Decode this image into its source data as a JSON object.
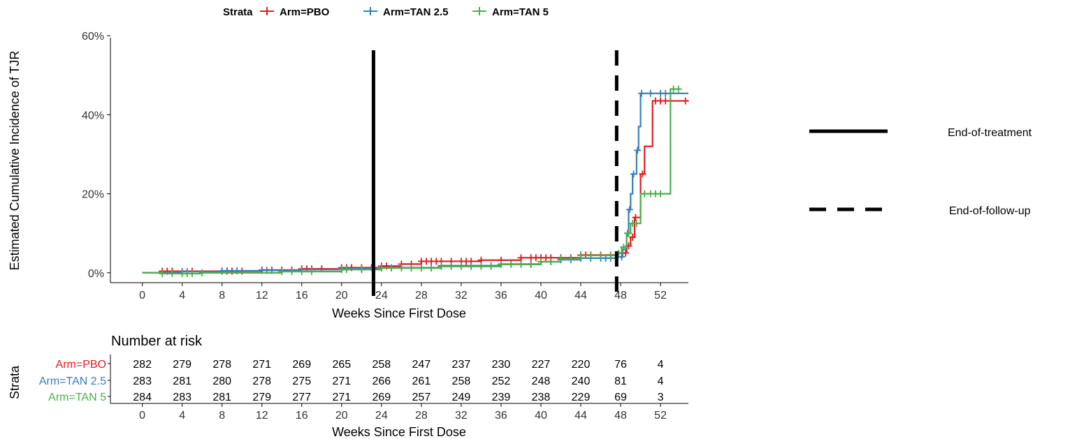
{
  "legend": {
    "title": "Strata",
    "entries": [
      "Arm=PBO",
      "Arm=TAN 2.5",
      "Arm=TAN 5"
    ],
    "colors": [
      "#e41a1c",
      "#377eb8",
      "#4daf4a"
    ]
  },
  "reference_legend": {
    "solid_label": "End-of-treatment",
    "dashed_label": "End-of-follow-up"
  },
  "chart_data": {
    "type": "line",
    "subtype": "step-cumulative-incidence",
    "title": "",
    "xlabel": "Weeks Since First Dose",
    "ylabel": "Estimated Cumulative Incidence of TJR",
    "xlim": [
      -3.2,
      54.8
    ],
    "ylim": [
      -2.5,
      59.5
    ],
    "x_ticks": [
      0,
      4,
      8,
      12,
      16,
      20,
      24,
      28,
      32,
      36,
      40,
      44,
      48,
      52
    ],
    "x_tick_labels": [
      "0",
      "4",
      "8",
      "12",
      "16",
      "20",
      "24",
      "28",
      "32",
      "36",
      "40",
      "44",
      "48",
      "52"
    ],
    "y_ticks": [
      0,
      20,
      40,
      60
    ],
    "y_tick_labels": [
      "0%",
      "20%",
      "40%",
      "60%"
    ],
    "grid": false,
    "legend_position": "top",
    "reference_lines": [
      {
        "x": 23.2,
        "style": "solid",
        "label": "End-of-treatment"
      },
      {
        "x": 47.6,
        "style": "dashed",
        "label": "End-of-follow-up"
      }
    ],
    "series": [
      {
        "name": "Arm=PBO",
        "color": "#e41a1c",
        "steps": [
          [
            0,
            0
          ],
          [
            2,
            0.4
          ],
          [
            8,
            0.4
          ],
          [
            12,
            0.7
          ],
          [
            16,
            1.0
          ],
          [
            20,
            1.3
          ],
          [
            24,
            1.7
          ],
          [
            26,
            2.2
          ],
          [
            28,
            2.9
          ],
          [
            34,
            3.2
          ],
          [
            38,
            3.8
          ],
          [
            44,
            4.5
          ],
          [
            47.6,
            5.0
          ],
          [
            48.6,
            6.8
          ],
          [
            49.0,
            9.0
          ],
          [
            49.4,
            14.0
          ],
          [
            50.0,
            25.0
          ],
          [
            50.4,
            32.0
          ],
          [
            51.2,
            43.5
          ],
          [
            54.8,
            43.5
          ]
        ],
        "censor_x": [
          2,
          2.5,
          3,
          5,
          8,
          8.5,
          9,
          10,
          12,
          13,
          14,
          15,
          16,
          16.5,
          17,
          18,
          20,
          20.5,
          21,
          22,
          23,
          24,
          24.5,
          26,
          27,
          28,
          28.5,
          29,
          29.5,
          30,
          31,
          32,
          32.5,
          33,
          34,
          36,
          38,
          39,
          39.5,
          40,
          40.5,
          41,
          42,
          43,
          44,
          44.5,
          45,
          46,
          47,
          48.2,
          48.5,
          48.8,
          49.2,
          49.5,
          50.2,
          51.5,
          52,
          52.5,
          53,
          54.5
        ]
      },
      {
        "name": "Arm=TAN 2.5",
        "color": "#377eb8",
        "steps": [
          [
            0,
            0
          ],
          [
            4,
            0.3
          ],
          [
            8,
            0.5
          ],
          [
            12,
            0.6
          ],
          [
            16,
            0.8
          ],
          [
            20,
            1.1
          ],
          [
            24,
            1.3
          ],
          [
            30,
            1.8
          ],
          [
            36,
            2.2
          ],
          [
            40,
            2.8
          ],
          [
            42,
            3.3
          ],
          [
            44,
            3.7
          ],
          [
            47.6,
            4.0
          ],
          [
            48.2,
            6.0
          ],
          [
            48.6,
            10.0
          ],
          [
            48.8,
            16.0
          ],
          [
            49.0,
            20.0
          ],
          [
            49.2,
            25.0
          ],
          [
            49.6,
            31.0
          ],
          [
            49.8,
            37.0
          ],
          [
            50.0,
            45.4
          ],
          [
            54.8,
            45.4
          ]
        ],
        "censor_x": [
          4,
          4.5,
          8,
          8.5,
          9.5,
          12,
          12.5,
          13,
          16,
          17,
          20,
          20.5,
          22,
          24,
          25,
          26,
          27,
          28,
          29,
          30,
          31,
          32,
          33,
          34,
          35,
          36,
          37,
          38,
          39,
          40,
          41,
          42,
          43,
          44,
          45,
          46,
          46.5,
          47,
          48.1,
          48.7,
          48.9,
          49.3,
          49.7,
          50.1,
          51,
          52,
          52.5,
          53
        ]
      },
      {
        "name": "Arm=TAN 5",
        "color": "#4daf4a",
        "steps": [
          [
            0,
            0
          ],
          [
            2,
            -0.2
          ],
          [
            6,
            0
          ],
          [
            14,
            0.3
          ],
          [
            20,
            0.8
          ],
          [
            24,
            1.2
          ],
          [
            30,
            1.6
          ],
          [
            36,
            2.1
          ],
          [
            40,
            2.8
          ],
          [
            42,
            3.5
          ],
          [
            44,
            4.4
          ],
          [
            47.6,
            4.9
          ],
          [
            48.1,
            6.5
          ],
          [
            48.6,
            10.0
          ],
          [
            49.0,
            12.5
          ],
          [
            50.0,
            20.0
          ],
          [
            52.8,
            20.0
          ],
          [
            53.0,
            46.5
          ],
          [
            54.0,
            46.5
          ]
        ],
        "censor_x": [
          2,
          3,
          4,
          4.5,
          5,
          6,
          14,
          15,
          16,
          17,
          20,
          20.5,
          22,
          24,
          25,
          26,
          27,
          28,
          29,
          30,
          31,
          32,
          33,
          34,
          35,
          36,
          37,
          38,
          39,
          40,
          41,
          42,
          43,
          44,
          45,
          46,
          47,
          47.8,
          48.3,
          48.8,
          49.2,
          49.6,
          50.4,
          51,
          51.5,
          52,
          53.3,
          53.8
        ]
      }
    ]
  },
  "risk_table": {
    "title": "Number at risk",
    "ylabel": "Strata",
    "xlabel": "Weeks Since First Dose",
    "weeks": [
      0,
      4,
      8,
      12,
      16,
      20,
      24,
      28,
      32,
      36,
      40,
      44,
      48,
      52
    ],
    "week_labels": [
      "0",
      "4",
      "8",
      "12",
      "16",
      "20",
      "24",
      "28",
      "32",
      "36",
      "40",
      "44",
      "48",
      "52"
    ],
    "rows": [
      {
        "label": "Arm=PBO",
        "color": "#e41a1c",
        "values": [
          "282",
          "279",
          "278",
          "271",
          "269",
          "265",
          "258",
          "247",
          "237",
          "230",
          "227",
          "220",
          "76",
          "4"
        ]
      },
      {
        "label": "Arm=TAN 2.5",
        "color": "#377eb8",
        "values": [
          "283",
          "281",
          "280",
          "278",
          "275",
          "271",
          "266",
          "261",
          "258",
          "252",
          "248",
          "240",
          "81",
          "4"
        ]
      },
      {
        "label": "Arm=TAN 5",
        "color": "#4daf4a",
        "values": [
          "284",
          "283",
          "281",
          "279",
          "277",
          "271",
          "269",
          "257",
          "249",
          "239",
          "238",
          "229",
          "69",
          "3"
        ]
      }
    ]
  }
}
